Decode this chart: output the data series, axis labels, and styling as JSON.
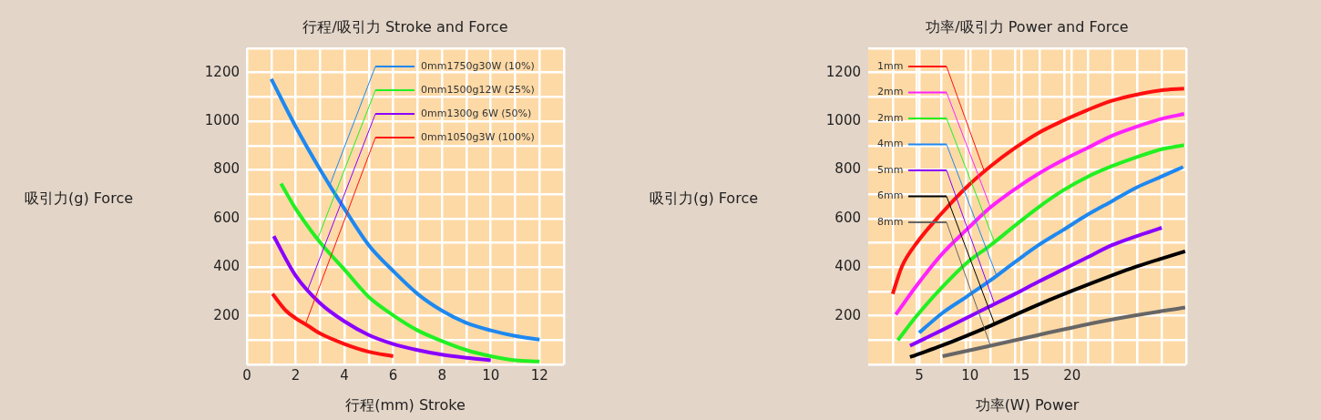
{
  "chart_data": [
    {
      "type": "line",
      "title": "行程/吸引力 Stroke and Force",
      "xlabel": "行程(mm) Stroke",
      "ylabel": "吸引力(g) Force",
      "xlim": [
        0,
        13
      ],
      "xticks": [
        0,
        {
          "value": 1,
          "label": null
        },
        2,
        {
          "value": 3,
          "label": null
        },
        4,
        {
          "value": 5,
          "label": null
        },
        6,
        {
          "value": 7,
          "label": null
        },
        8,
        {
          "value": 9,
          "label": null
        },
        10,
        {
          "value": 11,
          "label": null
        },
        12,
        {
          "value": 13,
          "label": null
        }
      ],
      "ylim": [
        0,
        1300
      ],
      "yticks": [
        {
          "value": 0,
          "label": null
        },
        {
          "value": 100,
          "label": null
        },
        200,
        {
          "value": 300,
          "label": null
        },
        400,
        {
          "value": 500,
          "label": null
        },
        600,
        {
          "value": 700,
          "label": null
        },
        800,
        {
          "value": 900,
          "label": null
        },
        1000,
        {
          "value": 1100,
          "label": null
        },
        1200,
        {
          "value": 1300,
          "label": null
        }
      ],
      "grid": true,
      "legend": "top right",
      "series": [
        {
          "name": "0mm1750g30W (10%)",
          "color": "#1e88f0",
          "x": [
            1.0,
            2.0,
            3.0,
            4.0,
            5.0,
            6.0,
            7.0,
            8.0,
            9.0,
            10.0,
            11.0,
            12.0
          ],
          "values": [
            1174,
            978,
            802,
            640,
            490,
            384,
            290,
            221,
            171,
            140,
            117,
            102
          ]
        },
        {
          "name": "0mm1500g12W (25%)",
          "color": "#22f022",
          "x": [
            1.4,
            2.0,
            3.0,
            4.0,
            5.0,
            6.0,
            7.0,
            8.0,
            9.0,
            10.0,
            11.0,
            12.0
          ],
          "values": [
            744,
            640,
            502,
            390,
            277,
            202,
            140,
            96,
            59,
            34,
            17,
            12
          ]
        },
        {
          "name": "0mm1300g 6W (50%)",
          "color": "#8a00ff",
          "x": [
            1.1,
            2.0,
            3.0,
            4.0,
            5.0,
            6.0,
            7.0,
            8.0,
            9.0,
            10.0
          ],
          "values": [
            527,
            365,
            252,
            177,
            121,
            84,
            59,
            40,
            27,
            17
          ]
        },
        {
          "name": "0mm1050g3W (100%)",
          "color": "#ff1010",
          "x": [
            1.05,
            1.6,
            2.0,
            2.5,
            3.0,
            4.0,
            5.0,
            6.0
          ],
          "values": [
            290,
            221,
            190,
            159,
            127,
            84,
            52,
            34
          ]
        }
      ]
    },
    {
      "type": "line",
      "title": "功率/吸引力 Power and Force",
      "xlabel": "功率(W) Power",
      "ylabel": "吸引力(g) Force",
      "xlim": [
        0,
        31.2
      ],
      "xticks": [
        {
          "value": 2.4,
          "label": null
        },
        {
          "value": 4.8,
          "label": null
        },
        5,
        {
          "value": 7.2,
          "label": null
        },
        {
          "value": 9.6,
          "label": null
        },
        10,
        {
          "value": 12,
          "label": null
        },
        {
          "value": 14.4,
          "label": null
        },
        15,
        {
          "value": 16.8,
          "label": null
        },
        {
          "value": 19.2,
          "label": null
        },
        20,
        {
          "value": 21.6,
          "label": null
        },
        {
          "value": 24,
          "label": null
        },
        {
          "value": 26.4,
          "label": null
        },
        {
          "value": 28.8,
          "label": null
        },
        {
          "value": 31.2,
          "label": null
        }
      ],
      "ylim": [
        0,
        1300
      ],
      "yticks": [
        {
          "value": 0,
          "label": null
        },
        {
          "value": 100,
          "label": null
        },
        200,
        {
          "value": 300,
          "label": null
        },
        400,
        {
          "value": 500,
          "label": null
        },
        600,
        {
          "value": 700,
          "label": null
        },
        800,
        {
          "value": 900,
          "label": null
        },
        1000,
        {
          "value": 1100,
          "label": null
        },
        1200,
        {
          "value": 1300,
          "label": null
        }
      ],
      "grid": true,
      "legend": "top left",
      "series": [
        {
          "name": "1mm",
          "color": "#ff1010",
          "x": [
            2.4,
            3.3,
            4.8,
            7.2,
            9.6,
            12.0,
            14.4,
            16.7,
            19.1,
            21.5,
            23.9,
            26.3,
            28.7,
            31.0
          ],
          "values": [
            290,
            402,
            502,
            621,
            727,
            815,
            890,
            952,
            1002,
            1046,
            1084,
            1109,
            1127,
            1134
          ]
        },
        {
          "name": "2mm",
          "color": "#ff22ff",
          "x": [
            2.7,
            4.8,
            7.2,
            9.6,
            12.0,
            14.4,
            16.7,
            19.1,
            21.5,
            23.9,
            26.3,
            28.7,
            31.0
          ],
          "values": [
            205,
            327,
            452,
            552,
            646,
            721,
            784,
            840,
            890,
            940,
            977,
            1009,
            1030
          ]
        },
        {
          "name": "2mm",
          "color": "#22f022",
          "x": [
            2.9,
            4.8,
            7.2,
            9.6,
            12.0,
            14.4,
            16.7,
            19.1,
            21.5,
            23.9,
            26.3,
            28.7,
            31.0
          ],
          "values": [
            99,
            202,
            315,
            415,
            490,
            571,
            646,
            715,
            771,
            815,
            852,
            884,
            902
          ]
        },
        {
          "name": "4mm",
          "color": "#1e88f0",
          "x": [
            5.0,
            7.2,
            9.6,
            12.0,
            14.4,
            16.7,
            19.1,
            21.5,
            23.9,
            26.3,
            28.7,
            30.9
          ],
          "values": [
            130,
            209,
            277,
            346,
            421,
            490,
            552,
            615,
            671,
            727,
            771,
            812
          ]
        },
        {
          "name": "5mm",
          "color": "#8a00ff",
          "x": [
            4.1,
            7.2,
            9.6,
            12.0,
            14.4,
            16.7,
            19.1,
            21.5,
            23.9,
            26.3,
            28.8
          ],
          "values": [
            77,
            140,
            190,
            240,
            290,
            340,
            390,
            440,
            490,
            527,
            562
          ]
        },
        {
          "name": "6mm",
          "color": "#000000",
          "x": [
            4.1,
            7.2,
            12.0,
            16.7,
            21.5,
            26.3,
            31.1
          ],
          "values": [
            30,
            77,
            159,
            246,
            327,
            402,
            465
          ]
        },
        {
          "name": "8mm",
          "color": "#666666",
          "x": [
            7.3,
            12.0,
            16.7,
            21.5,
            26.3,
            31.1
          ],
          "values": [
            34,
            77,
            121,
            165,
            202,
            234
          ]
        }
      ]
    }
  ]
}
